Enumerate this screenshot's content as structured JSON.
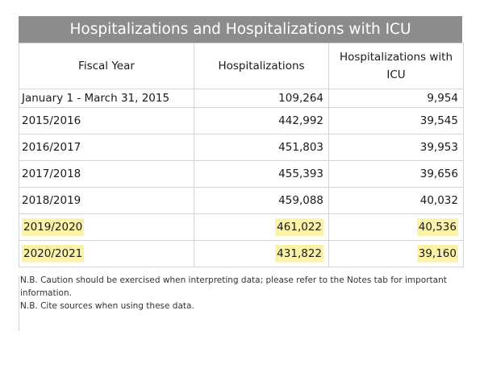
{
  "title": "Hospitalizations and Hospitalizations with ICU",
  "table": {
    "headers": [
      "Fiscal Year",
      "Hospitalizations",
      "Hospitalizations with ICU"
    ],
    "rows": [
      {
        "period": "January 1 - March 31, 2015",
        "hospitalizations": "109,264",
        "icu": "9,954",
        "highlighted": false
      },
      {
        "period": "2015/2016",
        "hospitalizations": "442,992",
        "icu": "39,545",
        "highlighted": false
      },
      {
        "period": "2016/2017",
        "hospitalizations": "451,803",
        "icu": "39,953",
        "highlighted": false
      },
      {
        "period": "2017/2018",
        "hospitalizations": "455,393",
        "icu": "39,656",
        "highlighted": false
      },
      {
        "period": "2018/2019",
        "hospitalizations": "459,088",
        "icu": "40,032",
        "highlighted": false
      },
      {
        "period": "2019/2020",
        "hospitalizations": "461,022",
        "icu": "40,536",
        "highlighted": true
      },
      {
        "period": "2020/2021",
        "hospitalizations": "431,822",
        "icu": "39,160",
        "highlighted": true
      }
    ]
  },
  "notes": [
    "N.B. Caution should be exercised when interpreting data; please refer to the Notes tab for important information.",
    "N.B. Cite sources when using these data."
  ],
  "colors": {
    "title_bar": "#8c8c8c",
    "highlight": "#fbf3a8",
    "grid": "#d4d4d4"
  }
}
